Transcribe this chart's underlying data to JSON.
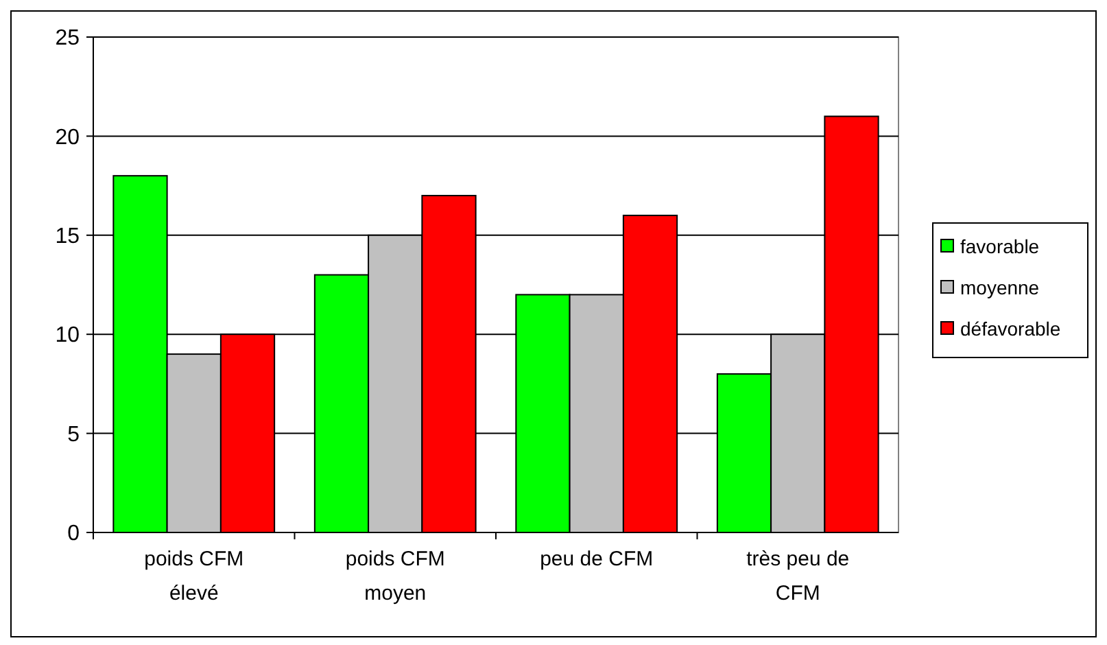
{
  "chart_data": {
    "type": "bar",
    "categories": [
      "poids CFM\nélevé",
      "poids CFM\nmoyen",
      "peu de CFM",
      "très peu de\nCFM"
    ],
    "series": [
      {
        "name": "favorable",
        "color": "#00ff00",
        "values": [
          18,
          13,
          12,
          8
        ]
      },
      {
        "name": "moyenne",
        "color": "#c0c0c0",
        "values": [
          9,
          15,
          12,
          10
        ]
      },
      {
        "name": "défavorable",
        "color": "#ff0000",
        "values": [
          10,
          17,
          16,
          21
        ]
      }
    ],
    "ylim": [
      0,
      25
    ],
    "yticks": [
      0,
      5,
      10,
      15,
      20,
      25
    ],
    "grid": "y",
    "legend": "right"
  }
}
